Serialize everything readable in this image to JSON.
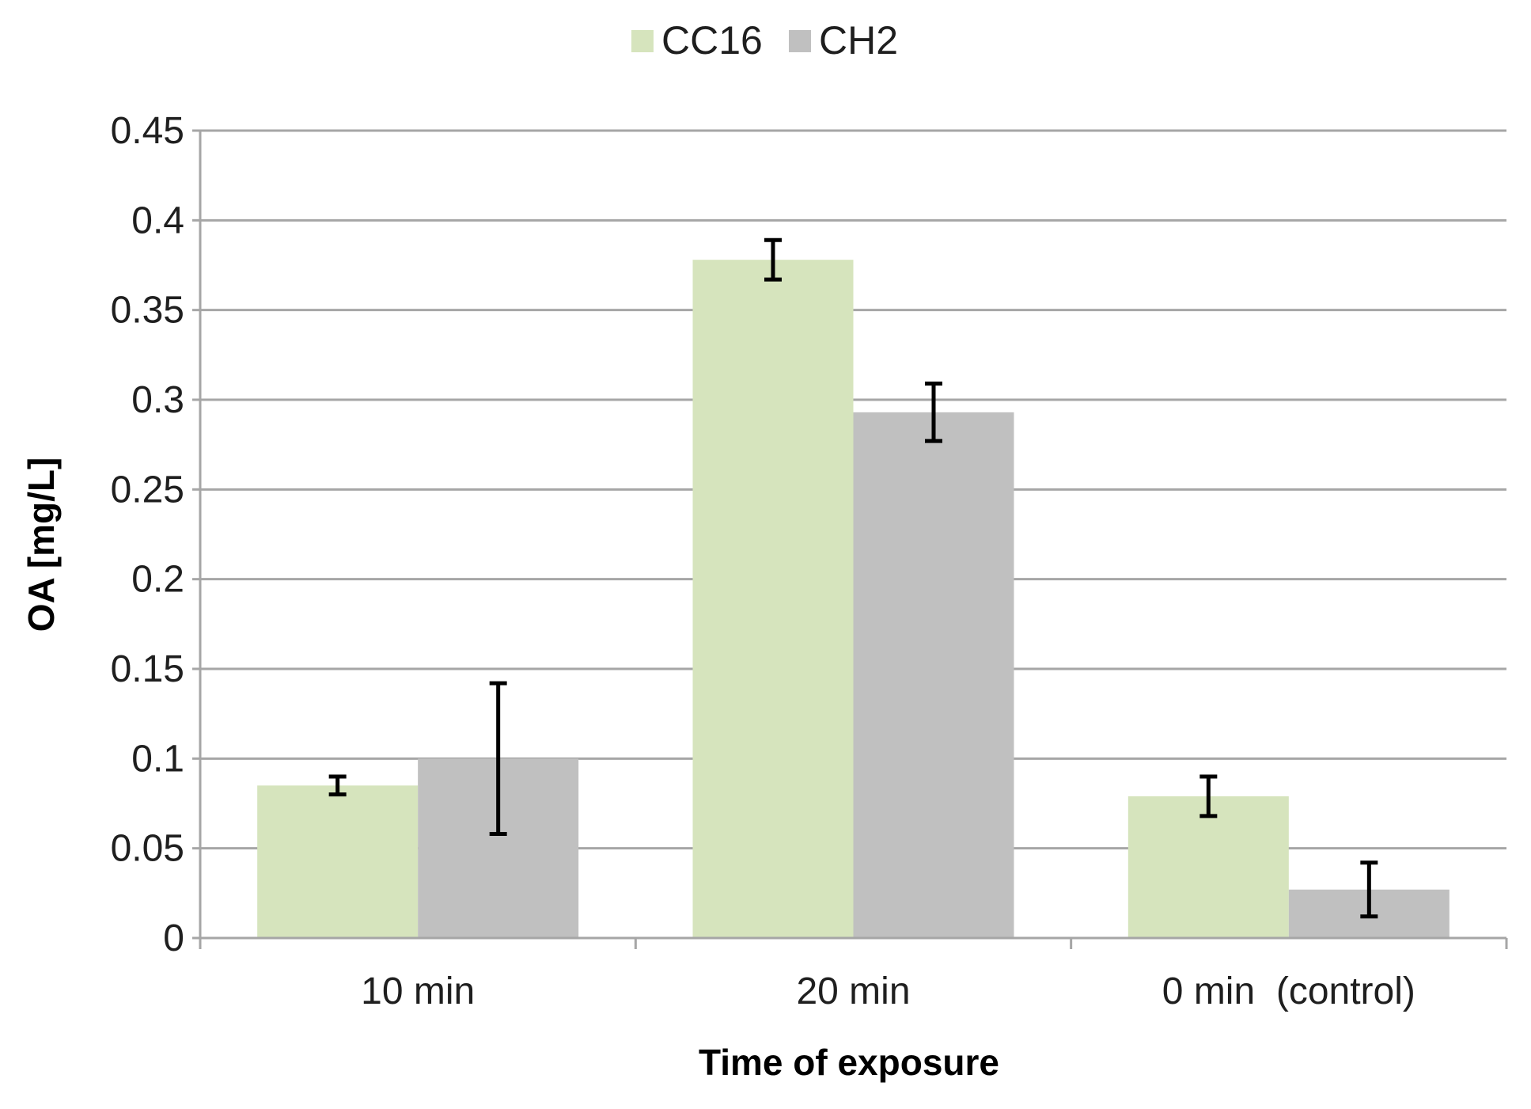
{
  "chart_data": {
    "type": "bar",
    "title": "",
    "xlabel": "Time of exposure",
    "ylabel": "OA [mg/L]",
    "categories": [
      "10 min",
      "20 min",
      "0 min  (control)"
    ],
    "series": [
      {
        "name": "CC16",
        "color": "#d6e4bd",
        "values": [
          0.085,
          0.378,
          0.079
        ],
        "error": [
          0.005,
          0.011,
          0.011
        ]
      },
      {
        "name": "CH2",
        "color": "#c0c0c0",
        "values": [
          0.1,
          0.293,
          0.027
        ],
        "error": [
          0.042,
          0.016,
          0.015
        ]
      }
    ],
    "ylim": [
      0,
      0.45
    ],
    "yticks": [
      0,
      0.05,
      0.1,
      0.15,
      0.2,
      0.25,
      0.3,
      0.35,
      0.4,
      0.45
    ],
    "ytick_labels": [
      "0",
      "0.05",
      "0.1",
      "0.15",
      "0.2",
      "0.25",
      "0.3",
      "0.35",
      "0.4",
      "0.45"
    ],
    "grid": true,
    "legend_position": "top-center"
  }
}
